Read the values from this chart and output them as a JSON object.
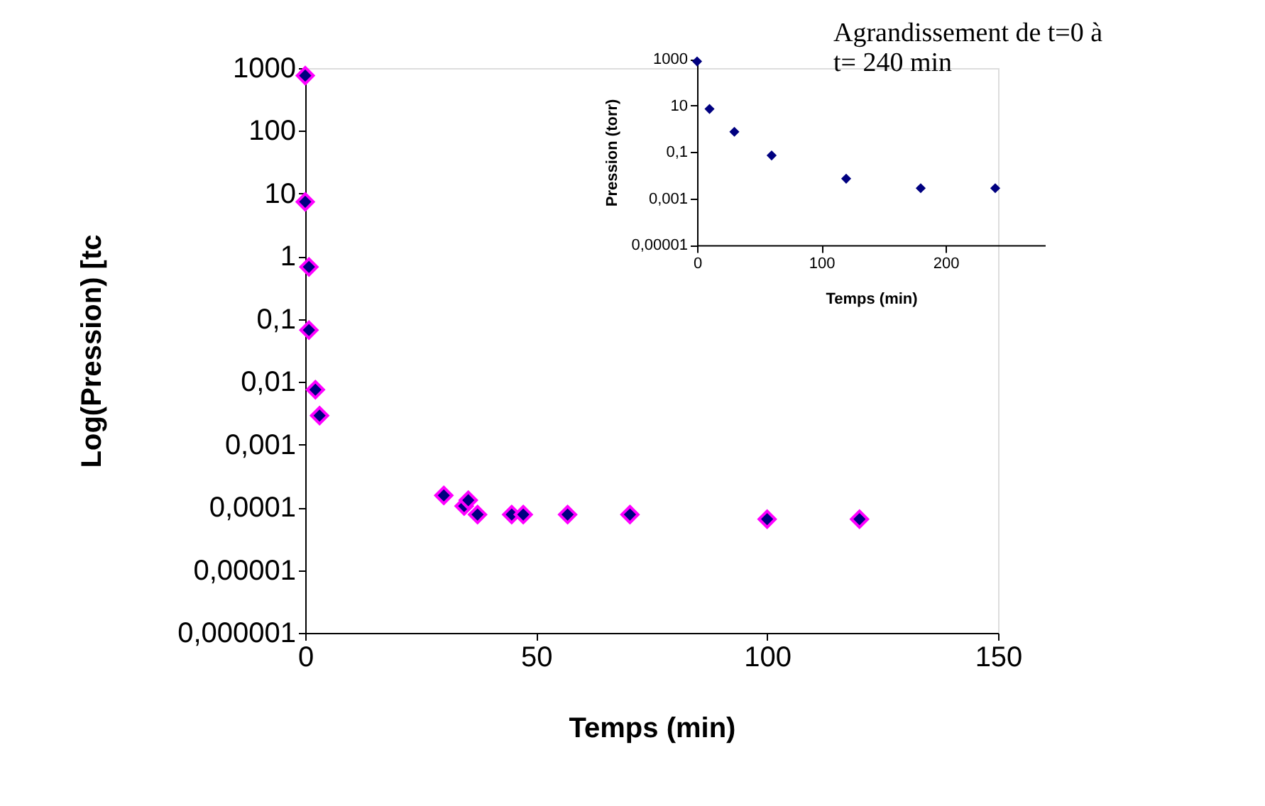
{
  "chart_data": [
    {
      "type": "scatter",
      "xlabel": "Temps (min)",
      "ylabel": "Log(Pression) [tc",
      "log": "y",
      "marker": "diamond",
      "grid": false,
      "xlim": [
        0,
        150
      ],
      "xticks": [
        0,
        50,
        100,
        150
      ],
      "ylim": [
        1e-06,
        1000
      ],
      "yticks": [
        1000,
        100,
        10,
        1,
        {
          "value": 0.1,
          "label": "0,1"
        },
        {
          "value": 0.01,
          "label": "0,01"
        },
        {
          "value": 0.001,
          "label": "0,001"
        },
        {
          "value": 0.0001,
          "label": "0,0001"
        },
        {
          "value": 1e-05,
          "label": "0,00001"
        },
        {
          "value": 1e-06,
          "label": "0,000001"
        }
      ],
      "series": [
        {
          "color": "#000080",
          "x": [
            0,
            0,
            0.8,
            0.8,
            2.2,
            3.1,
            30,
            34.4,
            35.3,
            37.3,
            44.7,
            47.2,
            56.8,
            70.3,
            100,
            120
          ],
          "values": [
            760,
            7.4,
            0.68,
            0.067,
            0.0075,
            0.0029,
            0.000155,
            0.000105,
            0.00013,
            7.7e-05,
            7.7e-05,
            7.7e-05,
            7.7e-05,
            7.7e-05,
            6.5e-05,
            6.5e-05
          ]
        }
      ]
    },
    {
      "type": "scatter",
      "title": "Agrandissement de t=0 à\n t= 240 min",
      "xlabel": "Temps (min)",
      "ylabel": "Pression (torr)",
      "log": "y",
      "marker": "diamond",
      "grid": false,
      "xlim": [
        0,
        280
      ],
      "xticks": [
        0,
        100,
        200
      ],
      "ylim": [
        1e-05,
        1000
      ],
      "yticks": [
        1000,
        10,
        {
          "value": 0.1,
          "label": "0,1"
        },
        {
          "value": 0.001,
          "label": "0,001"
        },
        {
          "value": 1e-05,
          "label": "0,00001"
        }
      ],
      "series": [
        {
          "color": "#000080",
          "x": [
            0,
            10,
            30,
            60,
            120,
            180,
            240
          ],
          "values": [
            800,
            7.2,
            0.75,
            0.072,
            0.0072,
            0.0028,
            0.0028
          ]
        }
      ]
    }
  ]
}
